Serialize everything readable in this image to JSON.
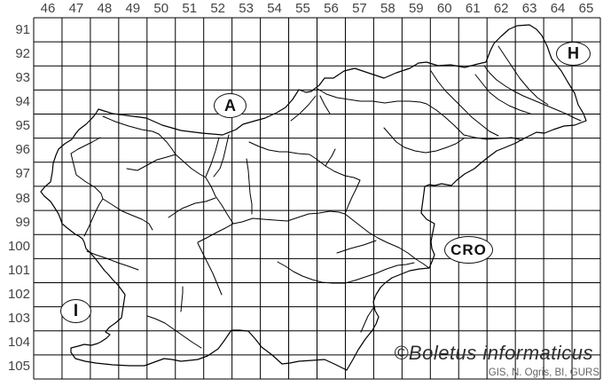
{
  "axes": {
    "top_labels": [
      "46",
      "47",
      "48",
      "49",
      "50",
      "51",
      "52",
      "53",
      "54",
      "55",
      "56",
      "57",
      "58",
      "59",
      "60",
      "61",
      "62",
      "63",
      "64",
      "65"
    ],
    "left_labels": [
      "91",
      "92",
      "93",
      "94",
      "95",
      "96",
      "97",
      "98",
      "99",
      "100",
      "101",
      "102",
      "103",
      "104",
      "105"
    ]
  },
  "grid": {
    "cols": 20,
    "rows": 15,
    "first_col": 46,
    "last_col": 65,
    "first_row": 91,
    "last_row": 105
  },
  "country_labels": {
    "austria": "A",
    "hungary": "H",
    "croatia": "CRO",
    "italy": "I"
  },
  "watermark": {
    "copyright": "©Boletus informaticus",
    "attribution": "GIS, N. Ogris, BI, GURS"
  },
  "colors": {
    "background": "#ffffff",
    "grid_line": "#000000",
    "map_line": "#000000",
    "axis_text": "#444444",
    "attribution_text": "#666666"
  }
}
